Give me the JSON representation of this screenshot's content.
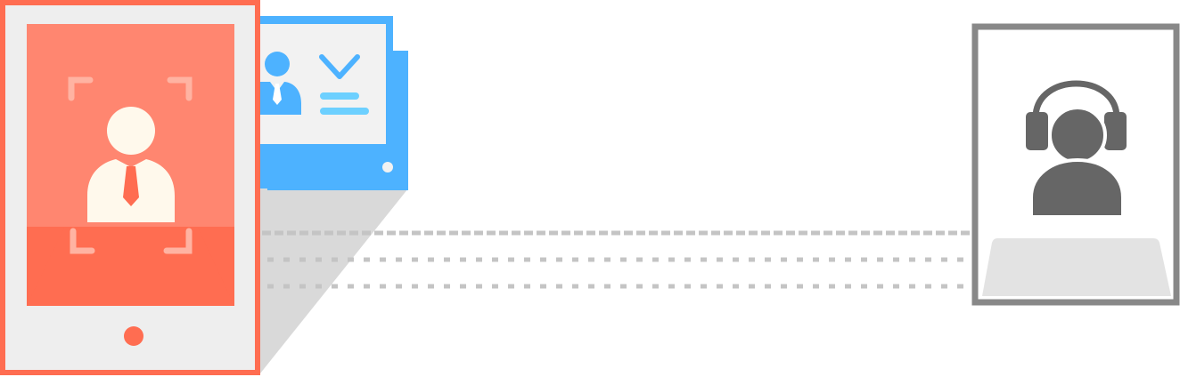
{
  "colors": {
    "tablet_frame": "#FF6D51",
    "tablet_body": "#EEEEEE",
    "tablet_screen_top": "#FF8670",
    "tablet_screen_bottom": "#FF6D51",
    "person_light": "#FFF9EC",
    "focus_corner": "#FFB3A2",
    "card_blue": "#4DB2FF",
    "card_body": "#F2F2F2",
    "card_accent": "#6DD0FF",
    "projection_gray": "#D9D9D9",
    "dashed_line": "#C4C4C4",
    "agent_frame": "#888888",
    "agent_person": "#666666",
    "desk": "#E3E3E3"
  },
  "icons": {
    "tablet": "tablet-icon",
    "user_in_frame": "user-focus-icon",
    "id_card": "id-card-icon",
    "check": "check-icon",
    "support_agent": "headset-agent-icon",
    "desk": "desk-icon",
    "connection": "dashed-connection-lines"
  }
}
